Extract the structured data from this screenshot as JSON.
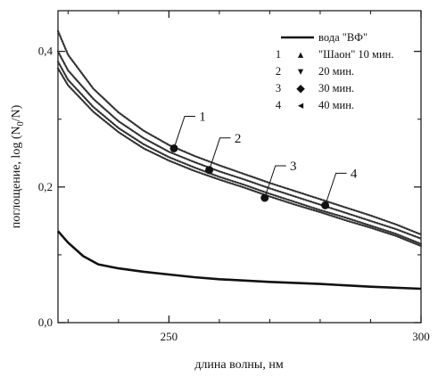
{
  "chart_data": {
    "type": "line",
    "title": "",
    "xlabel": "длина волны, нм",
    "ylabel": "поглощение, log (N",
    "ylabel_sub": "0",
    "ylabel_end": "/N)",
    "xlim": [
      228,
      300
    ],
    "ylim": [
      0,
      0.46
    ],
    "x_ticks": [
      250,
      300
    ],
    "x_tick_labels": [
      "250",
      "300"
    ],
    "y_ticks": [
      0.0,
      0.2,
      0.4
    ],
    "y_tick_labels": [
      "0,0",
      "0,2",
      "0,4"
    ],
    "grid": false,
    "legend_placement": "top-right",
    "legend": [
      {
        "num": "",
        "marker": "line",
        "label": "вода \"ВФ\""
      },
      {
        "num": "1",
        "marker": "▴",
        "label": "\"Шаон\" 10 мин."
      },
      {
        "num": "2",
        "marker": "▾",
        "label": "20 мин."
      },
      {
        "num": "3",
        "marker": "◆",
        "label": "30 мин."
      },
      {
        "num": "4",
        "marker": "◂",
        "label": "40 мин."
      }
    ],
    "series": [
      {
        "name": "вода \"ВФ\"",
        "style": "solid",
        "x": [
          228,
          230,
          233,
          236,
          240,
          245,
          250,
          255,
          260,
          270,
          280,
          290,
          300
        ],
        "values": [
          0.135,
          0.118,
          0.098,
          0.086,
          0.08,
          0.075,
          0.071,
          0.067,
          0.064,
          0.06,
          0.057,
          0.053,
          0.05
        ]
      },
      {
        "name": "\"Шаон\" 10 мин.",
        "style": "dotted",
        "x": [
          228,
          230,
          235,
          240,
          245,
          250,
          255,
          260,
          265,
          270,
          275,
          280,
          285,
          290,
          295,
          300
        ],
        "values": [
          0.43,
          0.395,
          0.345,
          0.31,
          0.283,
          0.262,
          0.246,
          0.232,
          0.219,
          0.206,
          0.194,
          0.182,
          0.17,
          0.158,
          0.145,
          0.13
        ]
      },
      {
        "name": "20 мин.",
        "style": "dotted",
        "x": [
          228,
          230,
          235,
          240,
          245,
          250,
          255,
          260,
          265,
          270,
          275,
          280,
          285,
          290,
          295,
          300
        ],
        "values": [
          0.4,
          0.372,
          0.33,
          0.297,
          0.272,
          0.252,
          0.237,
          0.223,
          0.211,
          0.198,
          0.186,
          0.174,
          0.162,
          0.15,
          0.138,
          0.124
        ]
      },
      {
        "name": "30 мин.",
        "style": "dotted",
        "x": [
          228,
          230,
          235,
          240,
          245,
          250,
          255,
          260,
          265,
          270,
          275,
          280,
          285,
          290,
          295,
          300
        ],
        "values": [
          0.385,
          0.358,
          0.318,
          0.287,
          0.263,
          0.244,
          0.229,
          0.215,
          0.203,
          0.19,
          0.178,
          0.166,
          0.155,
          0.143,
          0.131,
          0.116
        ]
      },
      {
        "name": "40 мин.",
        "style": "dotted",
        "x": [
          228,
          230,
          235,
          240,
          245,
          250,
          255,
          260,
          265,
          270,
          275,
          280,
          285,
          290,
          295,
          300
        ],
        "values": [
          0.375,
          0.35,
          0.311,
          0.281,
          0.257,
          0.239,
          0.224,
          0.211,
          0.199,
          0.186,
          0.174,
          0.163,
          0.151,
          0.14,
          0.128,
          0.113
        ]
      }
    ],
    "callouts": [
      {
        "label": "1",
        "x": 251,
        "y": 0.257
      },
      {
        "label": "2",
        "x": 258,
        "y": 0.225
      },
      {
        "label": "3",
        "x": 269,
        "y": 0.184
      },
      {
        "label": "4",
        "x": 281,
        "y": 0.173
      }
    ]
  }
}
